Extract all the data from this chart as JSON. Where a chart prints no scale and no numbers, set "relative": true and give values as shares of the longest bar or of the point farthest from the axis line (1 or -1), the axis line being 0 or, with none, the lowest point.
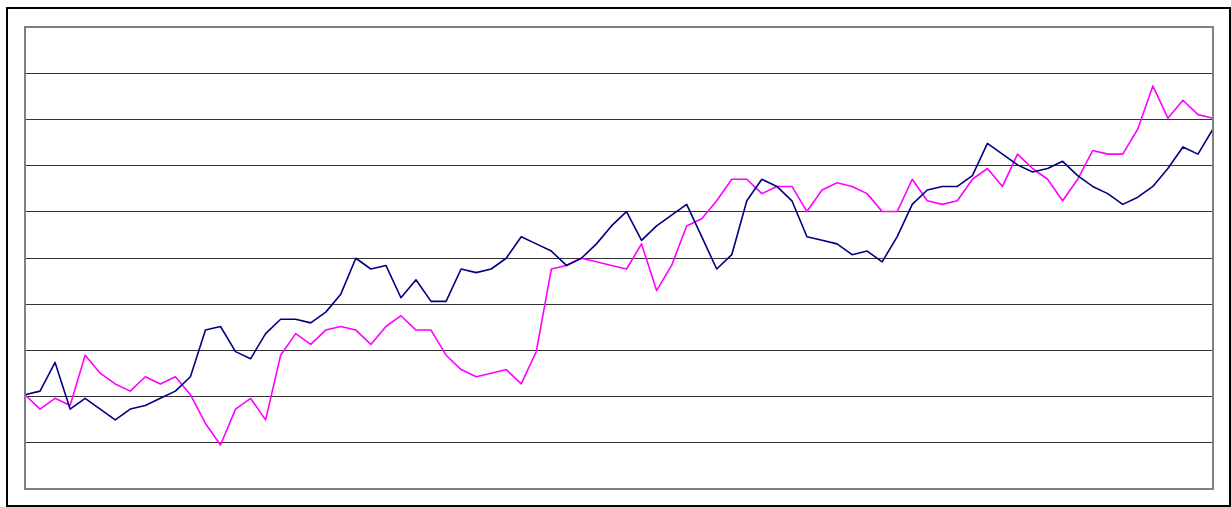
{
  "chart_data": {
    "type": "line",
    "relative": true,
    "categories": [
      null,
      null,
      null,
      null,
      null,
      null,
      null,
      null,
      null,
      null,
      null,
      null,
      null,
      null,
      null,
      null,
      null,
      null,
      null,
      null,
      null,
      null,
      null,
      null,
      null,
      null,
      null,
      null,
      null,
      null,
      null,
      null,
      null,
      null,
      null,
      null,
      null,
      null,
      null,
      null,
      null,
      null,
      null,
      null,
      null,
      null,
      null,
      null,
      null,
      null,
      null,
      null,
      null,
      null,
      null,
      null,
      null,
      null,
      null,
      null,
      null,
      null,
      null,
      null,
      null,
      null,
      null,
      null,
      null,
      null,
      null,
      null,
      null,
      null,
      null,
      null,
      null,
      null,
      null,
      null
    ],
    "series": [
      {
        "color": "#000080",
        "values": [
          0.14,
          0.15,
          0.23,
          0.1,
          0.13,
          0.1,
          0.07,
          0.1,
          0.11,
          0.13,
          0.15,
          0.19,
          0.32,
          0.33,
          0.26,
          0.24,
          0.31,
          0.35,
          0.35,
          0.34,
          0.37,
          0.42,
          0.52,
          0.49,
          0.5,
          0.41,
          0.46,
          0.4,
          0.4,
          0.49,
          0.48,
          0.49,
          0.52,
          0.58,
          0.56,
          0.54,
          0.5,
          0.52,
          0.56,
          0.61,
          0.65,
          0.57,
          0.61,
          0.64,
          0.67,
          0.58,
          0.49,
          0.53,
          0.68,
          0.74,
          0.72,
          0.68,
          0.58,
          0.57,
          0.56,
          0.53,
          0.54,
          0.51,
          0.58,
          0.67,
          0.71,
          0.72,
          0.72,
          0.75,
          0.84,
          0.81,
          0.78,
          0.76,
          0.77,
          0.79,
          0.75,
          0.72,
          0.7,
          0.67,
          0.69,
          0.72,
          0.77,
          0.83,
          0.81,
          0.88
        ]
      },
      {
        "color": "#ff00ff",
        "values": [
          0.14,
          0.1,
          0.13,
          0.11,
          0.25,
          0.2,
          0.17,
          0.15,
          0.19,
          0.17,
          0.19,
          0.14,
          0.06,
          0,
          0.1,
          0.13,
          0.07,
          0.25,
          0.31,
          0.28,
          0.32,
          0.33,
          0.32,
          0.28,
          0.33,
          0.36,
          0.32,
          0.32,
          0.25,
          0.21,
          0.19,
          0.2,
          0.21,
          0.17,
          0.26,
          0.49,
          0.5,
          0.52,
          0.51,
          0.5,
          0.49,
          0.56,
          0.43,
          0.5,
          0.61,
          0.63,
          0.68,
          0.74,
          0.74,
          0.7,
          0.72,
          0.72,
          0.65,
          0.71,
          0.73,
          0.72,
          0.7,
          0.65,
          0.65,
          0.74,
          0.68,
          0.67,
          0.68,
          0.74,
          0.77,
          0.72,
          0.81,
          0.77,
          0.74,
          0.68,
          0.74,
          0.82,
          0.81,
          0.81,
          0.88,
          1,
          0.91,
          0.96,
          0.92,
          0.91
        ]
      }
    ],
    "grid": "y",
    "marker": "none",
    "line_style": "solid",
    "legend": false
  }
}
